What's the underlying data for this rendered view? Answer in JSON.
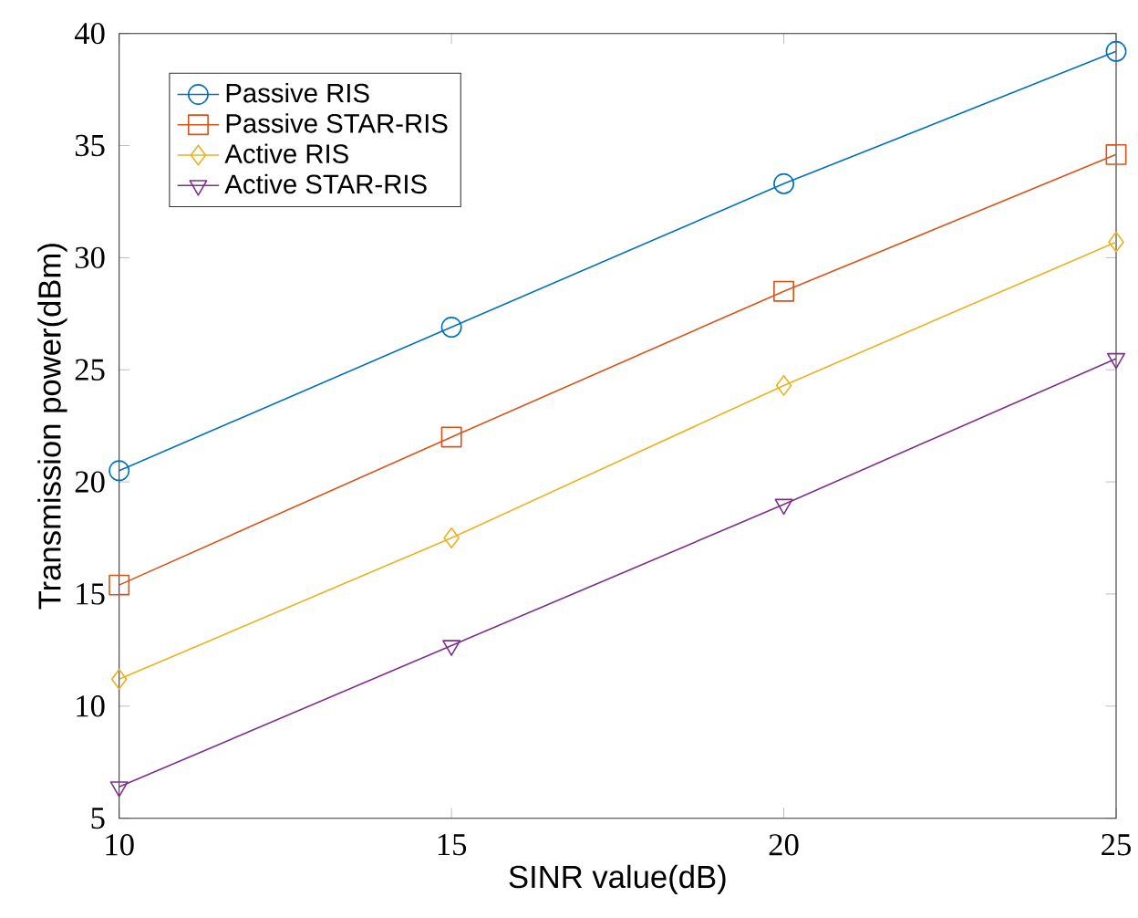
{
  "chart_data": {
    "type": "line",
    "xlabel": "SINR value(dB)",
    "ylabel": "Transmission power(dBm)",
    "x": [
      10,
      15,
      20,
      25
    ],
    "xlim": [
      10,
      25
    ],
    "xticks": [
      10,
      15,
      20,
      25
    ],
    "ylim": [
      5,
      40
    ],
    "yticks": [
      5,
      10,
      15,
      20,
      25,
      30,
      35,
      40
    ],
    "grid": false,
    "legend": "top left",
    "series": [
      {
        "name": "Passive RIS",
        "color": "#0072bd",
        "marker": "circle",
        "values": [
          20.5,
          26.9,
          33.3,
          39.2
        ]
      },
      {
        "name": "Passive STAR-RIS",
        "color": "#d95319",
        "marker": "square",
        "values": [
          15.4,
          22.0,
          28.5,
          34.6
        ]
      },
      {
        "name": "Active RIS",
        "color": "#edb120",
        "marker": "diamond",
        "values": [
          11.2,
          17.5,
          24.3,
          30.7
        ]
      },
      {
        "name": "Active STAR-RIS",
        "color": "#7e2f8e",
        "marker": "triangle",
        "values": [
          6.4,
          12.7,
          19.0,
          25.5
        ]
      }
    ]
  }
}
